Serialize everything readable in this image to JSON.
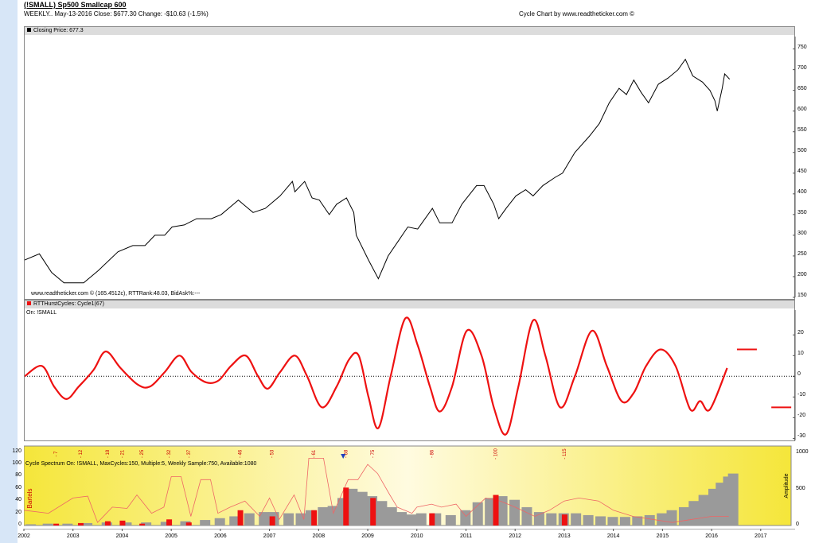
{
  "header": {
    "title": "(!SMALL) Sp500 Smallcap 600",
    "subtitle": "WEEKLY.. May-13-2016   Close: $677.30   Change: -$10.63   (-1.5%)",
    "credit": "Cycle Chart by www.readtheticker.com ©"
  },
  "price_panel": {
    "legend": "Closing Price: 677.3",
    "footer": "www.readtheticker.com © (165.4512c), RTTRank:48.03, BidAsk%:---",
    "color": "#000000"
  },
  "cycle_panel": {
    "legend": "RTTHurstCycles: Cycle1(67)",
    "sublabel": "On: !SMALL",
    "color": "#ee1111"
  },
  "spectrum_panel": {
    "label": "Cycle Spectrum On: !SMALL, MaxCycles:150, Multiple:5, Weekly Sample:750, Available:1080",
    "left_axis_title": "Bartels",
    "right_axis_title": "Amplitude"
  },
  "chart_data": [
    {
      "type": "line",
      "series": [
        {
          "values": [
            [
              2002.0,
              240
            ],
            [
              2002.3,
              255
            ],
            [
              2002.55,
              210
            ],
            [
              2002.8,
              185
            ],
            [
              2003.2,
              185
            ],
            [
              2003.5,
              215
            ],
            [
              2003.9,
              260
            ],
            [
              2004.2,
              275
            ],
            [
              2004.45,
              275
            ],
            [
              2004.65,
              300
            ],
            [
              2004.85,
              300
            ],
            [
              2005.0,
              320
            ],
            [
              2005.25,
              325
            ],
            [
              2005.5,
              340
            ],
            [
              2005.8,
              340
            ],
            [
              2006.0,
              350
            ],
            [
              2006.35,
              385
            ],
            [
              2006.5,
              370
            ],
            [
              2006.65,
              355
            ],
            [
              2006.9,
              365
            ],
            [
              2007.2,
              395
            ],
            [
              2007.45,
              430
            ],
            [
              2007.5,
              405
            ],
            [
              2007.7,
              430
            ],
            [
              2007.85,
              390
            ],
            [
              2008.0,
              385
            ],
            [
              2008.2,
              350
            ],
            [
              2008.35,
              375
            ],
            [
              2008.55,
              390
            ],
            [
              2008.7,
              355
            ],
            [
              2008.75,
              300
            ],
            [
              2009.0,
              240
            ],
            [
              2009.2,
              195
            ],
            [
              2009.4,
              250
            ],
            [
              2009.6,
              285
            ],
            [
              2009.8,
              320
            ],
            [
              2010.0,
              315
            ],
            [
              2010.3,
              365
            ],
            [
              2010.45,
              330
            ],
            [
              2010.7,
              330
            ],
            [
              2010.9,
              375
            ],
            [
              2011.2,
              420
            ],
            [
              2011.35,
              420
            ],
            [
              2011.55,
              375
            ],
            [
              2011.65,
              340
            ],
            [
              2011.8,
              365
            ],
            [
              2012.0,
              395
            ],
            [
              2012.2,
              410
            ],
            [
              2012.35,
              395
            ],
            [
              2012.55,
              420
            ],
            [
              2012.8,
              440
            ],
            [
              2012.95,
              450
            ],
            [
              2013.2,
              500
            ],
            [
              2013.5,
              540
            ],
            [
              2013.7,
              570
            ],
            [
              2013.9,
              620
            ],
            [
              2014.1,
              655
            ],
            [
              2014.25,
              640
            ],
            [
              2014.4,
              675
            ],
            [
              2014.55,
              645
            ],
            [
              2014.7,
              620
            ],
            [
              2014.9,
              665
            ],
            [
              2015.1,
              680
            ],
            [
              2015.3,
              700
            ],
            [
              2015.45,
              725
            ],
            [
              2015.6,
              685
            ],
            [
              2015.8,
              670
            ],
            [
              2015.95,
              650
            ],
            [
              2016.05,
              625
            ],
            [
              2016.1,
              600
            ],
            [
              2016.2,
              655
            ],
            [
              2016.25,
              690
            ],
            [
              2016.35,
              677
            ]
          ]
        }
      ],
      "x_ticks": [
        "2002",
        "2003",
        "2004",
        "2005",
        "2006",
        "2007",
        "2008",
        "2009",
        "2010",
        "2011",
        "2012",
        "2013",
        "2014",
        "2015",
        "2016",
        "2017"
      ],
      "xlim": [
        2002,
        2017.7
      ],
      "y_ticks": [
        150,
        200,
        250,
        300,
        350,
        400,
        450,
        500,
        550,
        600,
        650,
        700,
        750
      ],
      "ylim": [
        150,
        780
      ]
    },
    {
      "type": "line",
      "series": [
        {
          "values": [
            [
              2002.0,
              0
            ],
            [
              2002.35,
              5
            ],
            [
              2002.6,
              -5
            ],
            [
              2002.85,
              -11
            ],
            [
              2003.1,
              -5
            ],
            [
              2003.4,
              3
            ],
            [
              2003.65,
              12
            ],
            [
              2003.95,
              4
            ],
            [
              2004.3,
              -4
            ],
            [
              2004.55,
              -5
            ],
            [
              2004.85,
              2
            ],
            [
              2005.15,
              10
            ],
            [
              2005.4,
              2
            ],
            [
              2005.7,
              -3
            ],
            [
              2005.95,
              -2
            ],
            [
              2006.2,
              5
            ],
            [
              2006.5,
              10
            ],
            [
              2006.75,
              0
            ],
            [
              2006.95,
              -6
            ],
            [
              2007.2,
              2
            ],
            [
              2007.5,
              10
            ],
            [
              2007.75,
              0
            ],
            [
              2008.05,
              -15
            ],
            [
              2008.35,
              -5
            ],
            [
              2008.6,
              8
            ],
            [
              2008.8,
              10
            ],
            [
              2009.0,
              -10
            ],
            [
              2009.2,
              -25
            ],
            [
              2009.45,
              0
            ],
            [
              2009.75,
              28
            ],
            [
              2010.0,
              15
            ],
            [
              2010.25,
              -5
            ],
            [
              2010.45,
              -17
            ],
            [
              2010.7,
              -5
            ],
            [
              2011.0,
              22
            ],
            [
              2011.3,
              10
            ],
            [
              2011.55,
              -15
            ],
            [
              2011.8,
              -28
            ],
            [
              2012.05,
              -5
            ],
            [
              2012.35,
              27
            ],
            [
              2012.6,
              10
            ],
            [
              2012.9,
              -15
            ],
            [
              2013.2,
              0
            ],
            [
              2013.55,
              22
            ],
            [
              2013.85,
              5
            ],
            [
              2014.15,
              -12
            ],
            [
              2014.4,
              -8
            ],
            [
              2014.65,
              5
            ],
            [
              2014.95,
              13
            ],
            [
              2015.25,
              5
            ],
            [
              2015.55,
              -16
            ],
            [
              2015.75,
              -12
            ],
            [
              2015.95,
              -16
            ],
            [
              2016.3,
              4
            ]
          ]
        }
      ],
      "markers": [
        {
          "x": 2016.5,
          "y": 13
        },
        {
          "x": 2017.2,
          "y": -15
        }
      ],
      "x_ticks": [
        "2002",
        "2003",
        "2004",
        "2005",
        "2006",
        "2007",
        "2008",
        "2009",
        "2010",
        "2011",
        "2012",
        "2013",
        "2014",
        "2015",
        "2016",
        "2017"
      ],
      "xlim": [
        2002,
        2017.7
      ],
      "y_ticks": [
        -30,
        -20,
        -10,
        0,
        10,
        20
      ],
      "ylim": [
        -31,
        32
      ]
    },
    {
      "type": "bar",
      "bartels_ticks": [
        0,
        20,
        40,
        60,
        80,
        100,
        120
      ],
      "bartels_lim": [
        0,
        130
      ],
      "amplitude_ticks": [
        0,
        500,
        1000
      ],
      "amplitude_lim": [
        0,
        1100
      ],
      "cycle_labels": [
        "7",
        "12",
        "18",
        "21",
        "25",
        "32",
        "37",
        "46",
        "53",
        "61",
        "68",
        "75",
        "86",
        "100",
        "115"
      ],
      "cycle_label_positions": [
        2002.65,
        2003.15,
        2003.7,
        2004.0,
        2004.4,
        2004.95,
        2005.35,
        2006.4,
        2007.05,
        2007.9,
        2008.55,
        2009.1,
        2010.3,
        2011.6,
        2013.0
      ],
      "peak_marker_x": 2008.5,
      "x_ticks": [
        "2002",
        "2003",
        "2004",
        "2005",
        "2006",
        "2007",
        "2008",
        "2009",
        "2010",
        "2011",
        "2012",
        "2013",
        "2014",
        "2015",
        "2016",
        "2017"
      ],
      "xlim": [
        2002,
        2017.7
      ],
      "gray_bars": [
        [
          2002.05,
          2
        ],
        [
          2002.4,
          3
        ],
        [
          2002.8,
          3
        ],
        [
          2003.2,
          4
        ],
        [
          2003.6,
          5
        ],
        [
          2004.0,
          5
        ],
        [
          2004.4,
          5
        ],
        [
          2004.8,
          6
        ],
        [
          2005.2,
          7
        ],
        [
          2005.6,
          9
        ],
        [
          2005.9,
          12
        ],
        [
          2006.2,
          15
        ],
        [
          2006.5,
          20
        ],
        [
          2006.8,
          22
        ],
        [
          2007.0,
          22
        ],
        [
          2007.3,
          20
        ],
        [
          2007.55,
          20
        ],
        [
          2007.75,
          25
        ],
        [
          2008.0,
          30
        ],
        [
          2008.2,
          32
        ],
        [
          2008.4,
          45
        ],
        [
          2008.6,
          60
        ],
        [
          2008.8,
          55
        ],
        [
          2009.0,
          48
        ],
        [
          2009.2,
          40
        ],
        [
          2009.4,
          30
        ],
        [
          2009.6,
          22
        ],
        [
          2009.8,
          18
        ],
        [
          2010.0,
          20
        ],
        [
          2010.3,
          20
        ],
        [
          2010.6,
          17
        ],
        [
          2010.9,
          25
        ],
        [
          2011.15,
          38
        ],
        [
          2011.4,
          45
        ],
        [
          2011.65,
          48
        ],
        [
          2011.9,
          42
        ],
        [
          2012.15,
          30
        ],
        [
          2012.4,
          22
        ],
        [
          2012.65,
          20
        ],
        [
          2012.9,
          20
        ],
        [
          2013.15,
          20
        ],
        [
          2013.4,
          17
        ],
        [
          2013.65,
          15
        ],
        [
          2013.9,
          14
        ],
        [
          2014.15,
          14
        ],
        [
          2014.4,
          15
        ],
        [
          2014.65,
          17
        ],
        [
          2014.9,
          20
        ],
        [
          2015.1,
          25
        ],
        [
          2015.35,
          30
        ],
        [
          2015.55,
          40
        ],
        [
          2015.75,
          50
        ],
        [
          2015.95,
          60
        ],
        [
          2016.1,
          70
        ],
        [
          2016.25,
          80
        ],
        [
          2016.35,
          85
        ]
      ],
      "red_bars": [
        [
          2002.65,
          3
        ],
        [
          2003.15,
          4
        ],
        [
          2003.7,
          7
        ],
        [
          2004.0,
          8
        ],
        [
          2004.4,
          3
        ],
        [
          2004.95,
          10
        ],
        [
          2005.35,
          5
        ],
        [
          2006.4,
          25
        ],
        [
          2007.05,
          15
        ],
        [
          2007.9,
          25
        ],
        [
          2008.55,
          62
        ],
        [
          2009.1,
          45
        ],
        [
          2010.3,
          20
        ],
        [
          2011.6,
          50
        ],
        [
          2013.0,
          18
        ]
      ],
      "bartels_line": [
        [
          2002.0,
          25
        ],
        [
          2002.5,
          20
        ],
        [
          2003.0,
          45
        ],
        [
          2003.3,
          48
        ],
        [
          2003.5,
          5
        ],
        [
          2003.8,
          30
        ],
        [
          2004.1,
          28
        ],
        [
          2004.3,
          50
        ],
        [
          2004.6,
          20
        ],
        [
          2004.85,
          30
        ],
        [
          2005.0,
          80
        ],
        [
          2005.2,
          80
        ],
        [
          2005.4,
          15
        ],
        [
          2005.6,
          75
        ],
        [
          2005.8,
          75
        ],
        [
          2005.95,
          20
        ],
        [
          2006.2,
          30
        ],
        [
          2006.5,
          40
        ],
        [
          2006.8,
          15
        ],
        [
          2007.0,
          45
        ],
        [
          2007.2,
          10
        ],
        [
          2007.5,
          50
        ],
        [
          2007.7,
          10
        ],
        [
          2007.8,
          110
        ],
        [
          2008.1,
          110
        ],
        [
          2008.3,
          20
        ],
        [
          2008.6,
          75
        ],
        [
          2008.8,
          75
        ],
        [
          2009.0,
          100
        ],
        [
          2009.2,
          85
        ],
        [
          2009.45,
          50
        ],
        [
          2009.6,
          30
        ],
        [
          2009.9,
          20
        ],
        [
          2010.0,
          30
        ],
        [
          2010.3,
          35
        ],
        [
          2010.5,
          30
        ],
        [
          2010.8,
          35
        ],
        [
          2011.0,
          15
        ],
        [
          2011.4,
          45
        ],
        [
          2011.7,
          40
        ],
        [
          2012.0,
          30
        ],
        [
          2012.4,
          15
        ],
        [
          2012.7,
          25
        ],
        [
          2013.0,
          40
        ],
        [
          2013.3,
          45
        ],
        [
          2013.7,
          40
        ],
        [
          2014.0,
          25
        ],
        [
          2014.4,
          15
        ],
        [
          2014.8,
          10
        ],
        [
          2015.2,
          5
        ],
        [
          2015.6,
          10
        ],
        [
          2016.0,
          15
        ],
        [
          2016.35,
          15
        ]
      ]
    }
  ]
}
